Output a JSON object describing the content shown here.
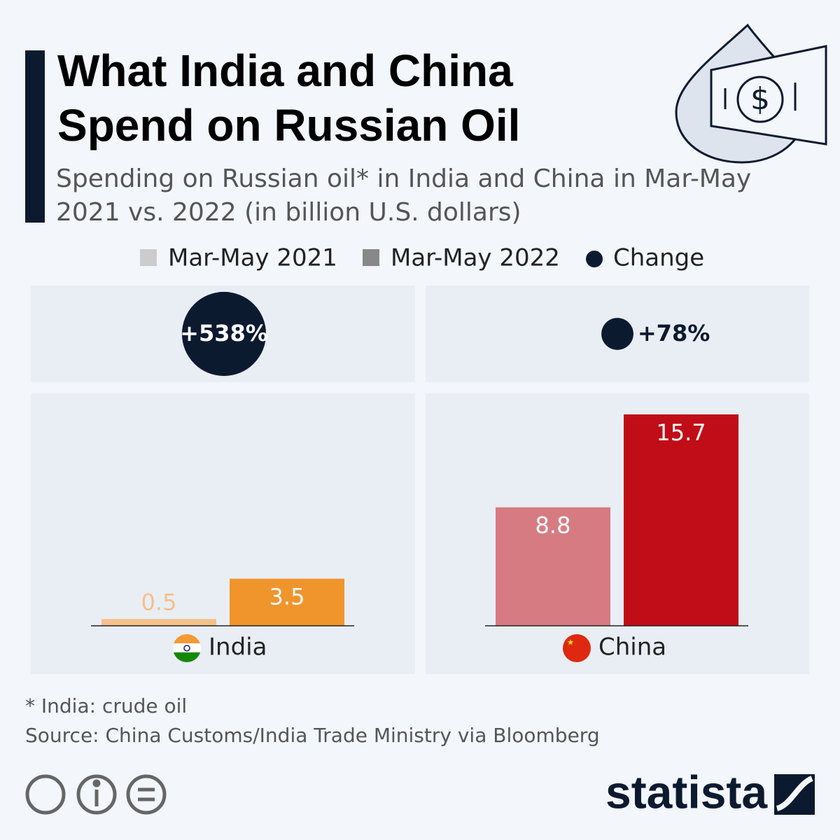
{
  "chart_data": {
    "type": "bar",
    "title": "What India and China Spend on Russian Oil",
    "subtitle": "Spending on Russian oil* in India and China in Mar-May 2021 vs. 2022  (in billion U.S. dollars)",
    "categories": [
      "India",
      "China"
    ],
    "series": [
      {
        "name": "Mar-May 2021",
        "color": "#cccccc",
        "bar_colors": [
          "#f5c08a",
          "#d67b82"
        ],
        "values": [
          0.5,
          8.8
        ]
      },
      {
        "name": "Mar-May 2022",
        "color": "#888888",
        "bar_colors": [
          "#f0942c",
          "#c00d17"
        ],
        "values": [
          3.5,
          15.7
        ]
      }
    ],
    "change": {
      "name": "Change",
      "color": "#0c1a30",
      "values": [
        538,
        78
      ],
      "value_labels": [
        "+538%",
        "+78%"
      ]
    },
    "ylim": [
      0,
      17
    ],
    "footnote": "* India: crude oil",
    "source": "Source: China Customs/India Trade Ministry via Bloomberg",
    "brand": "statista"
  }
}
